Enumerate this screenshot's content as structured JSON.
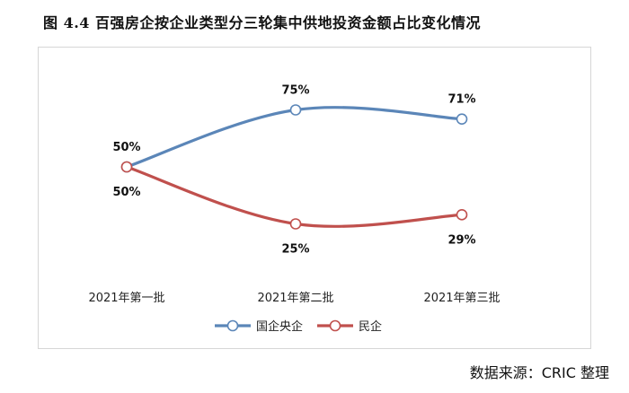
{
  "figure": {
    "title": "图 4.4   百强房企按企业类型分三轮集中供地投资金额占比变化情况",
    "source": "数据来源：CRIC 整理"
  },
  "chart_data": {
    "type": "line",
    "categories": [
      "2021年第一批",
      "2021年第二批",
      "2021年第三批"
    ],
    "series": [
      {
        "name": "国企央企",
        "values": [
          50,
          75,
          71
        ],
        "color": "#5b86b8",
        "labels": [
          "50%",
          "75%",
          "71%"
        ]
      },
      {
        "name": "民企",
        "values": [
          50,
          25,
          29
        ],
        "color": "#c0504d",
        "labels": [
          "50%",
          "25%",
          "29%"
        ]
      }
    ],
    "smooth": true,
    "markers": "hollow-circle",
    "grid": false,
    "legend": "bottom",
    "ylim": [
      0,
      100
    ]
  }
}
